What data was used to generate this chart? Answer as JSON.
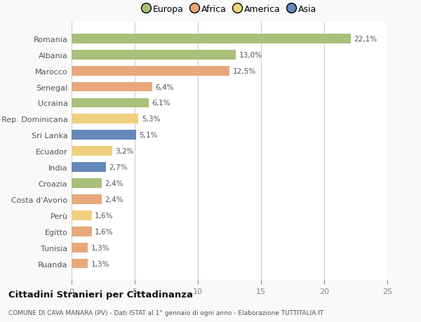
{
  "categories": [
    "Romania",
    "Albania",
    "Marocco",
    "Senegal",
    "Ucraina",
    "Rep. Dominicana",
    "Sri Lanka",
    "Ecuador",
    "India",
    "Croazia",
    "Costa d'Avorio",
    "Perù",
    "Egitto",
    "Tunisia",
    "Ruanda"
  ],
  "values": [
    22.1,
    13.0,
    12.5,
    6.4,
    6.1,
    5.3,
    5.1,
    3.2,
    2.7,
    2.4,
    2.4,
    1.6,
    1.6,
    1.3,
    1.3
  ],
  "labels": [
    "22,1%",
    "13,0%",
    "12,5%",
    "6,4%",
    "6,1%",
    "5,3%",
    "5,1%",
    "3,2%",
    "2,7%",
    "2,4%",
    "2,4%",
    "1,6%",
    "1,6%",
    "1,3%",
    "1,3%"
  ],
  "colors": [
    "#a8c07a",
    "#a8c07a",
    "#e8a87c",
    "#e8a87c",
    "#a8c07a",
    "#f0d080",
    "#6688bb",
    "#f0d080",
    "#6688bb",
    "#a8c07a",
    "#e8a87c",
    "#f0d080",
    "#e8a87c",
    "#e8a87c",
    "#e8a87c"
  ],
  "legend_labels": [
    "Europa",
    "Africa",
    "America",
    "Asia"
  ],
  "legend_colors": [
    "#a8c07a",
    "#e8a87c",
    "#f0d080",
    "#6688bb"
  ],
  "title": "Cittadini Stranieri per Cittadinanza",
  "subtitle": "COMUNE DI CAVA MANARA (PV) - Dati ISTAT al 1° gennaio di ogni anno - Elaborazione TUTTITALIA.IT",
  "xlim": [
    0,
    25
  ],
  "xticks": [
    0,
    5,
    10,
    15,
    20,
    25
  ],
  "background_color": "#f9f9f9",
  "bar_background": "#ffffff"
}
